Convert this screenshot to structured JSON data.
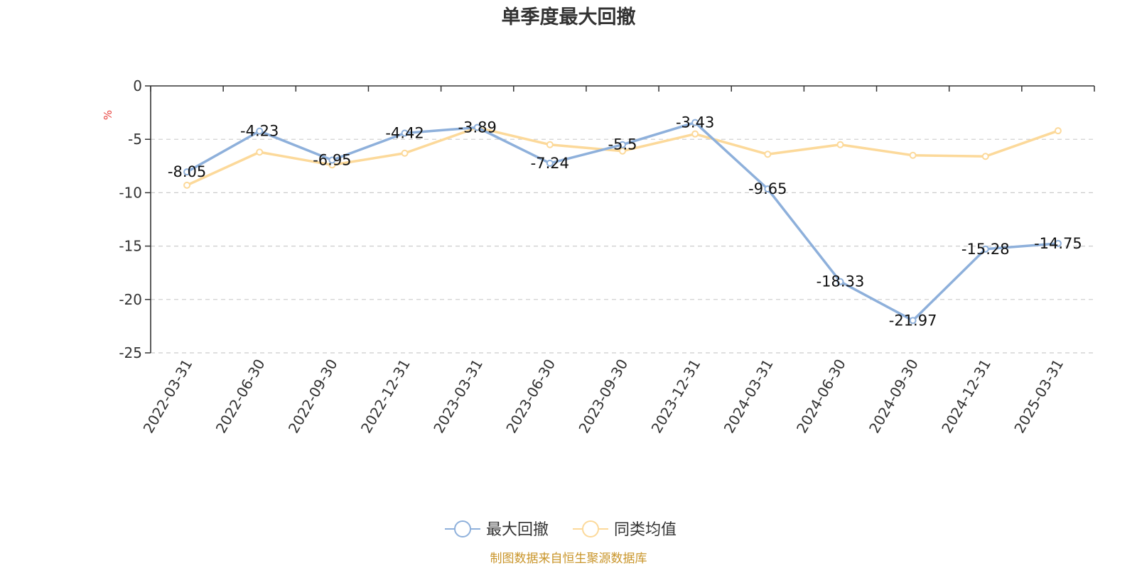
{
  "chart_data": {
    "type": "line",
    "title": "单季度最大回撤",
    "ylabel": "%",
    "categories": [
      "2022-03-31",
      "2022-06-30",
      "2022-09-30",
      "2022-12-31",
      "2023-03-31",
      "2023-06-30",
      "2023-09-30",
      "2023-12-31",
      "2024-03-31",
      "2024-06-30",
      "2024-09-30",
      "2024-12-31",
      "2025-03-31"
    ],
    "ylim": [
      -25,
      0
    ],
    "yticks": [
      "0",
      "-5",
      "-10",
      "-15",
      "-20",
      "-25"
    ],
    "grid": true,
    "legend_position": "bottom",
    "series": [
      {
        "name": "最大回撤",
        "color": "#8eb0db",
        "values": [
          -8.05,
          -4.23,
          -6.95,
          -4.42,
          -3.89,
          -7.24,
          -5.5,
          -3.43,
          -9.65,
          -18.33,
          -21.97,
          -15.28,
          -14.75
        ],
        "labels": [
          "-8.05",
          "-4.23",
          "-6.95",
          "-4.42",
          "-3.89",
          "-7.24",
          "-5.5",
          "-3.43",
          "-9.65",
          "-18.33",
          "-21.97",
          "-15.28",
          "-14.75"
        ]
      },
      {
        "name": "同类均值",
        "color": "#fcd99a",
        "values": [
          -9.3,
          -6.2,
          -7.4,
          -6.3,
          -3.9,
          -5.5,
          -6.1,
          -4.5,
          -6.4,
          -5.5,
          -6.5,
          -6.6,
          -4.2
        ]
      }
    ]
  },
  "source": "制图数据来自恒生聚源数据库"
}
